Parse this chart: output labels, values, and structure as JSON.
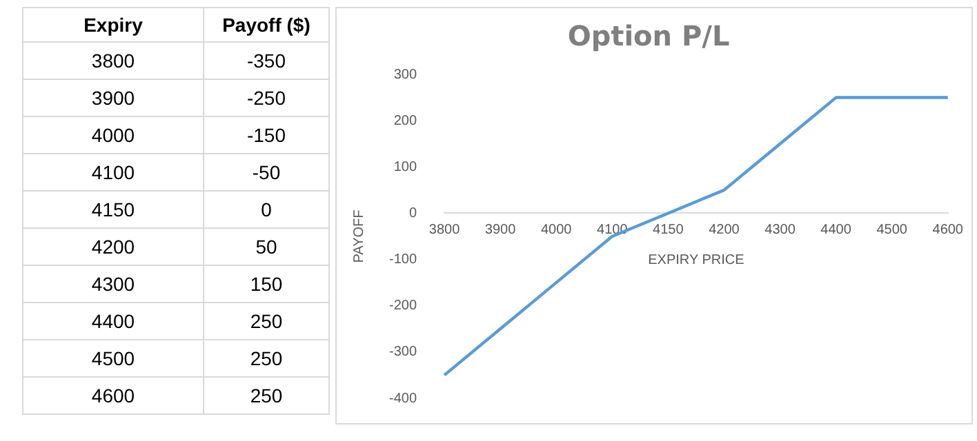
{
  "chart_data": [
    {
      "type": "other",
      "annotations": [
        "Expiry",
        "Payoff ($)",
        "3800",
        "-350",
        "3900",
        "-250",
        "4000",
        "-150",
        "4100",
        "-50",
        "4150",
        "0",
        "4200",
        "50",
        "4300",
        "150",
        "4400",
        "250",
        "4500",
        "250",
        "4600",
        "250"
      ]
    },
    {
      "type": "line",
      "title": "Option P/L",
      "xlabel": "EXPIRY PRICE",
      "ylabel": "PAYOFF",
      "categories": [
        "3800",
        "3900",
        "4000",
        "4100",
        "4150",
        "4200",
        "4300",
        "4400",
        "4500",
        "4600"
      ],
      "series": [
        {
          "color": "#5b9bd5",
          "values": [
            -350,
            -250,
            -150,
            -50,
            0,
            50,
            150,
            250,
            250,
            250
          ]
        }
      ],
      "ylim": [
        -400,
        300
      ],
      "yticks": [
        -400,
        -300,
        -200,
        -100,
        0,
        100,
        200,
        300
      ],
      "marker": "none",
      "line_style": "solid"
    }
  ]
}
